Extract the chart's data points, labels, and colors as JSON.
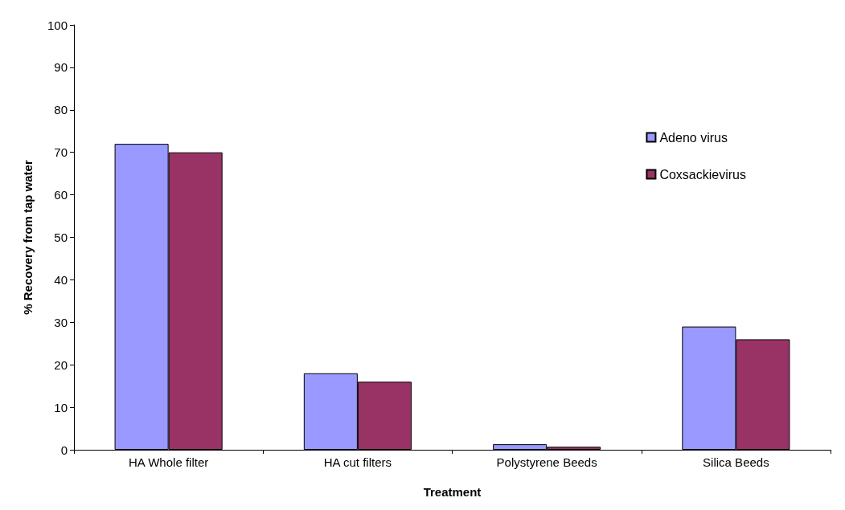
{
  "chart_data": {
    "type": "bar",
    "xlabel": "Treatment",
    "ylabel": "% Recovery from tap water",
    "categories": [
      "HA Whole filter",
      "HA cut filters",
      "Polystyrene Beeds",
      "Silica Beeds"
    ],
    "series": [
      {
        "name": "Adeno virus",
        "color": "#9999ff",
        "values": [
          72,
          18,
          1.3,
          29
        ]
      },
      {
        "name": "Coxsackievirus",
        "color": "#993366",
        "values": [
          70,
          16,
          0.7,
          26
        ]
      }
    ],
    "ylim": [
      0,
      100
    ],
    "yticks": [
      0,
      10,
      20,
      30,
      40,
      50,
      60,
      70,
      80,
      90,
      100
    ],
    "grid": false,
    "legend": "right"
  }
}
